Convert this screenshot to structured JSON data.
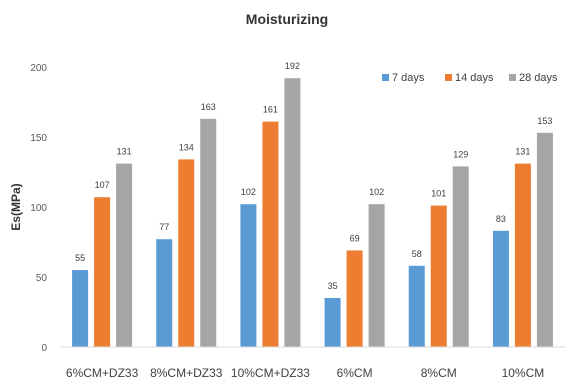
{
  "chart_data": {
    "type": "bar",
    "title": "Moisturizing",
    "xlabel": "",
    "ylabel": "Es(MPa)",
    "ylim": [
      0,
      200
    ],
    "yticks": [
      0,
      50,
      100,
      150,
      200
    ],
    "grid": false,
    "legend_position": "top-right",
    "categories": [
      "6%CM+DZ33",
      "8%CM+DZ33",
      "10%CM+DZ33",
      "6%CM",
      "8%CM",
      "10%CM"
    ],
    "series": [
      {
        "name": "7 days",
        "color": "#5b9bd5",
        "values": [
          55,
          77,
          102,
          35,
          58,
          83
        ]
      },
      {
        "name": "14 days",
        "color": "#ed7d31",
        "values": [
          107,
          134,
          161,
          69,
          101,
          131
        ]
      },
      {
        "name": "28 days",
        "color": "#a5a5a5",
        "values": [
          131,
          163,
          192,
          102,
          129,
          153
        ]
      }
    ]
  }
}
